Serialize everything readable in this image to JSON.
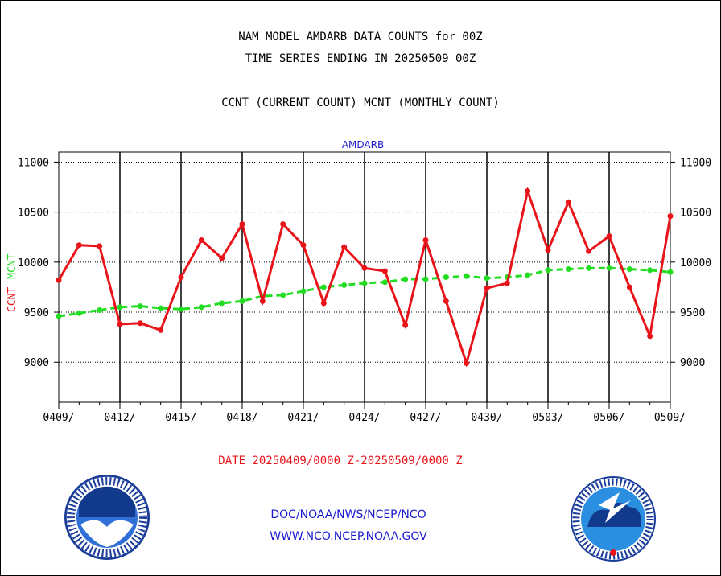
{
  "header": {
    "title_line1": "NAM MODEL AMDARB DATA COUNTS for 00Z",
    "title_line2": "TIME SERIES ENDING IN 20250509 00Z",
    "title_line3": "CCNT (CURRENT COUNT) MCNT (MONTHLY COUNT)"
  },
  "footer": {
    "date_range": "DATE 20250409/0000 Z-20250509/0000 Z",
    "org_path": "DOC/NOAA/NWS/NCEP/NCO",
    "website": "WWW.NCO.NCEP.NOAA.GOV"
  },
  "logos": {
    "left": "noaa-seal",
    "right": "national-weather-service-seal"
  },
  "chart_data": {
    "type": "line",
    "title": "AMDARB",
    "ylabel_ccnt": "CCNT",
    "ylabel_mcnt": "MCNT",
    "ylim": [
      8600,
      11100
    ],
    "yticks": [
      9000,
      9500,
      10000,
      10500,
      11000
    ],
    "xticks": [
      "0409/",
      "0412/",
      "0415/",
      "0418/",
      "0421/",
      "0424/",
      "0427/",
      "0430/",
      "0503/",
      "0506/",
      "0509/"
    ],
    "x": [
      "0409",
      "0410",
      "0411",
      "0412",
      "0413",
      "0414",
      "0415",
      "0416",
      "0417",
      "0418",
      "0419",
      "0420",
      "0421",
      "0422",
      "0423",
      "0424",
      "0425",
      "0426",
      "0427",
      "0428",
      "0429",
      "0430",
      "0501",
      "0502",
      "0503",
      "0504",
      "0505",
      "0506",
      "0507",
      "0508",
      "0509"
    ],
    "grid": true,
    "colors": {
      "ccnt": "#e8141a",
      "mcnt": "#22dd22",
      "title": "#1a1ad0"
    },
    "series": [
      {
        "name": "CCNT",
        "values": [
          9820,
          10170,
          10160,
          9380,
          9390,
          9320,
          9850,
          10220,
          10040,
          10380,
          9610,
          10380,
          10170,
          9590,
          10150,
          9940,
          9910,
          9370,
          10220,
          9610,
          8990,
          9740,
          9790,
          10710,
          10120,
          10600,
          10110,
          10260,
          9750,
          9260,
          10460
        ]
      },
      {
        "name": "MCNT",
        "values": [
          9460,
          9490,
          9520,
          9550,
          9560,
          9540,
          9530,
          9550,
          9590,
          9610,
          9660,
          9670,
          9710,
          9750,
          9770,
          9790,
          9800,
          9830,
          9830,
          9850,
          9860,
          9840,
          9850,
          9870,
          9920,
          9930,
          9940,
          9940,
          9930,
          9920,
          9900
        ]
      }
    ]
  }
}
